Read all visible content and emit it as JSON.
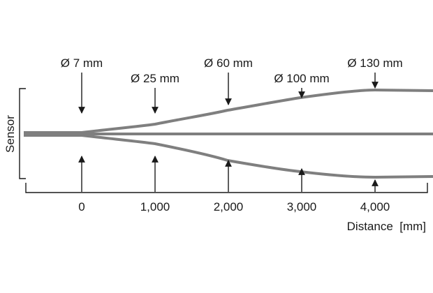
{
  "sensor_label": "Sensor",
  "x_axis": {
    "label": "Distance  [mm]",
    "ticks": [
      "0",
      "1,000",
      "2,000",
      "3,000",
      "4,000"
    ]
  },
  "markers": [
    {
      "distance": 0,
      "label": "Ø 7 mm"
    },
    {
      "distance": 1000,
      "label": "Ø 25 mm"
    },
    {
      "distance": 2000,
      "label": "Ø 60 mm"
    },
    {
      "distance": 3000,
      "label": "Ø 100 mm"
    },
    {
      "distance": 4000,
      "label": "Ø 130 mm"
    }
  ],
  "colors": {
    "beam": "#7f7f7f",
    "ink": "#1a1a1a"
  }
}
